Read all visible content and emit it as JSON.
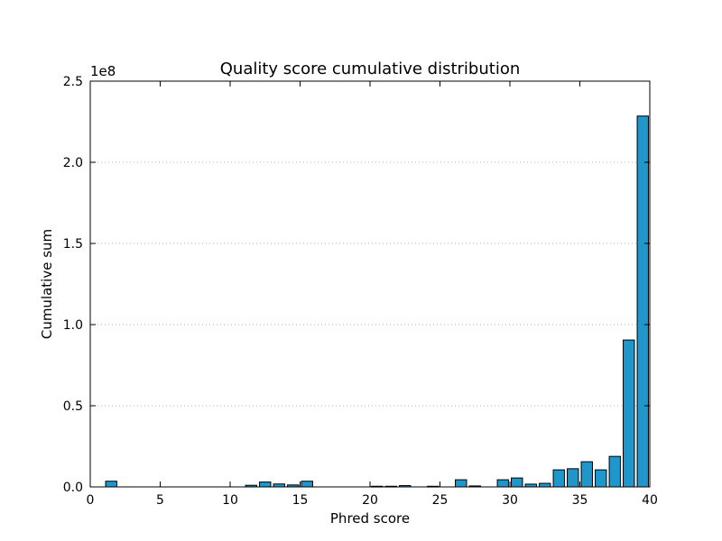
{
  "chart_data": {
    "type": "bar",
    "title": "Quality score cumulative distribution",
    "xlabel": "Phred score",
    "ylabel": "Cumulative sum",
    "y_offset_label": "1e8",
    "xlim": [
      0,
      40
    ],
    "ylim": [
      0,
      2.5
    ],
    "y_scale_factor": 100000000,
    "x_ticks": [
      "0",
      "5",
      "10",
      "15",
      "20",
      "25",
      "30",
      "35",
      "40"
    ],
    "y_ticks": [
      "0.0",
      "0.5",
      "1.0",
      "1.5",
      "2.0",
      "2.5"
    ],
    "grid": "y-dotted",
    "bar_color": "#1f96cc",
    "x": [
      1,
      11,
      12,
      13,
      14,
      15,
      20,
      21,
      22,
      24,
      26,
      27,
      29,
      30,
      31,
      32,
      33,
      34,
      35,
      36,
      37,
      38,
      39
    ],
    "values": [
      0.035,
      0.01,
      0.03,
      0.018,
      0.012,
      0.035,
      0.004,
      0.004,
      0.008,
      0.004,
      0.044,
      0.006,
      0.044,
      0.055,
      0.017,
      0.022,
      0.105,
      0.112,
      0.155,
      0.105,
      0.188,
      0.905,
      2.285
    ]
  }
}
